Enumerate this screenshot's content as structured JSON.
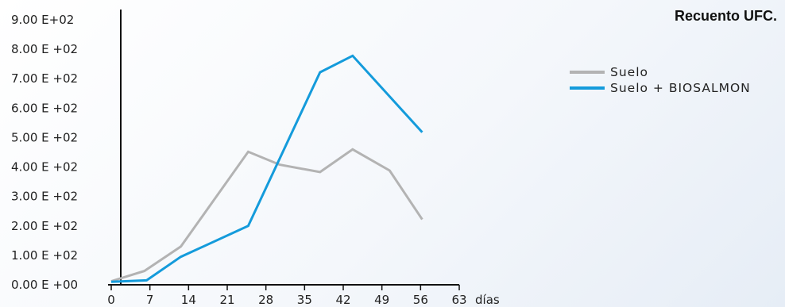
{
  "chart_data": {
    "type": "line",
    "title": "Recuento UFC.",
    "xlabel": "",
    "ylabel": "",
    "x_unit_label": "días",
    "x": [
      0,
      7,
      14,
      21,
      28,
      35,
      42,
      49,
      56,
      63
    ],
    "x_tick_labels": [
      "0",
      "7",
      "14",
      "21",
      "28",
      "35",
      "42",
      "49",
      "56",
      "63"
    ],
    "y_tick_labels": [
      "0.00 E +00",
      "1.00 E +02",
      "2.00 E +02",
      "3.00 E +02",
      "4.00 E +02",
      "5.00 E +02",
      "6.00 E +02",
      "7.00 E +02",
      "8.00 E +02",
      "9.00 E+02"
    ],
    "y_ticks": [
      0,
      100,
      200,
      300,
      400,
      500,
      600,
      700,
      800,
      900
    ],
    "xlim": [
      0,
      63
    ],
    "ylim": [
      0,
      900
    ],
    "grid": false,
    "legend_position": "top-right",
    "series": [
      {
        "name": "Suelo",
        "color": "#b3b3b3",
        "points": [
          [
            0,
            12
          ],
          [
            6,
            47
          ],
          [
            12.6,
            130
          ],
          [
            24.8,
            452
          ],
          [
            30.5,
            408
          ],
          [
            37.8,
            383
          ],
          [
            43.7,
            460
          ],
          [
            50.4,
            388
          ],
          [
            56.3,
            222
          ]
        ]
      },
      {
        "name": "Suelo + BIOSALMON",
        "color": "#149bdb",
        "points": [
          [
            0,
            10
          ],
          [
            6.4,
            15
          ],
          [
            12.6,
            95
          ],
          [
            24.8,
            200
          ],
          [
            37.8,
            722
          ],
          [
            43.7,
            778
          ],
          [
            56.3,
            518
          ]
        ]
      }
    ]
  }
}
